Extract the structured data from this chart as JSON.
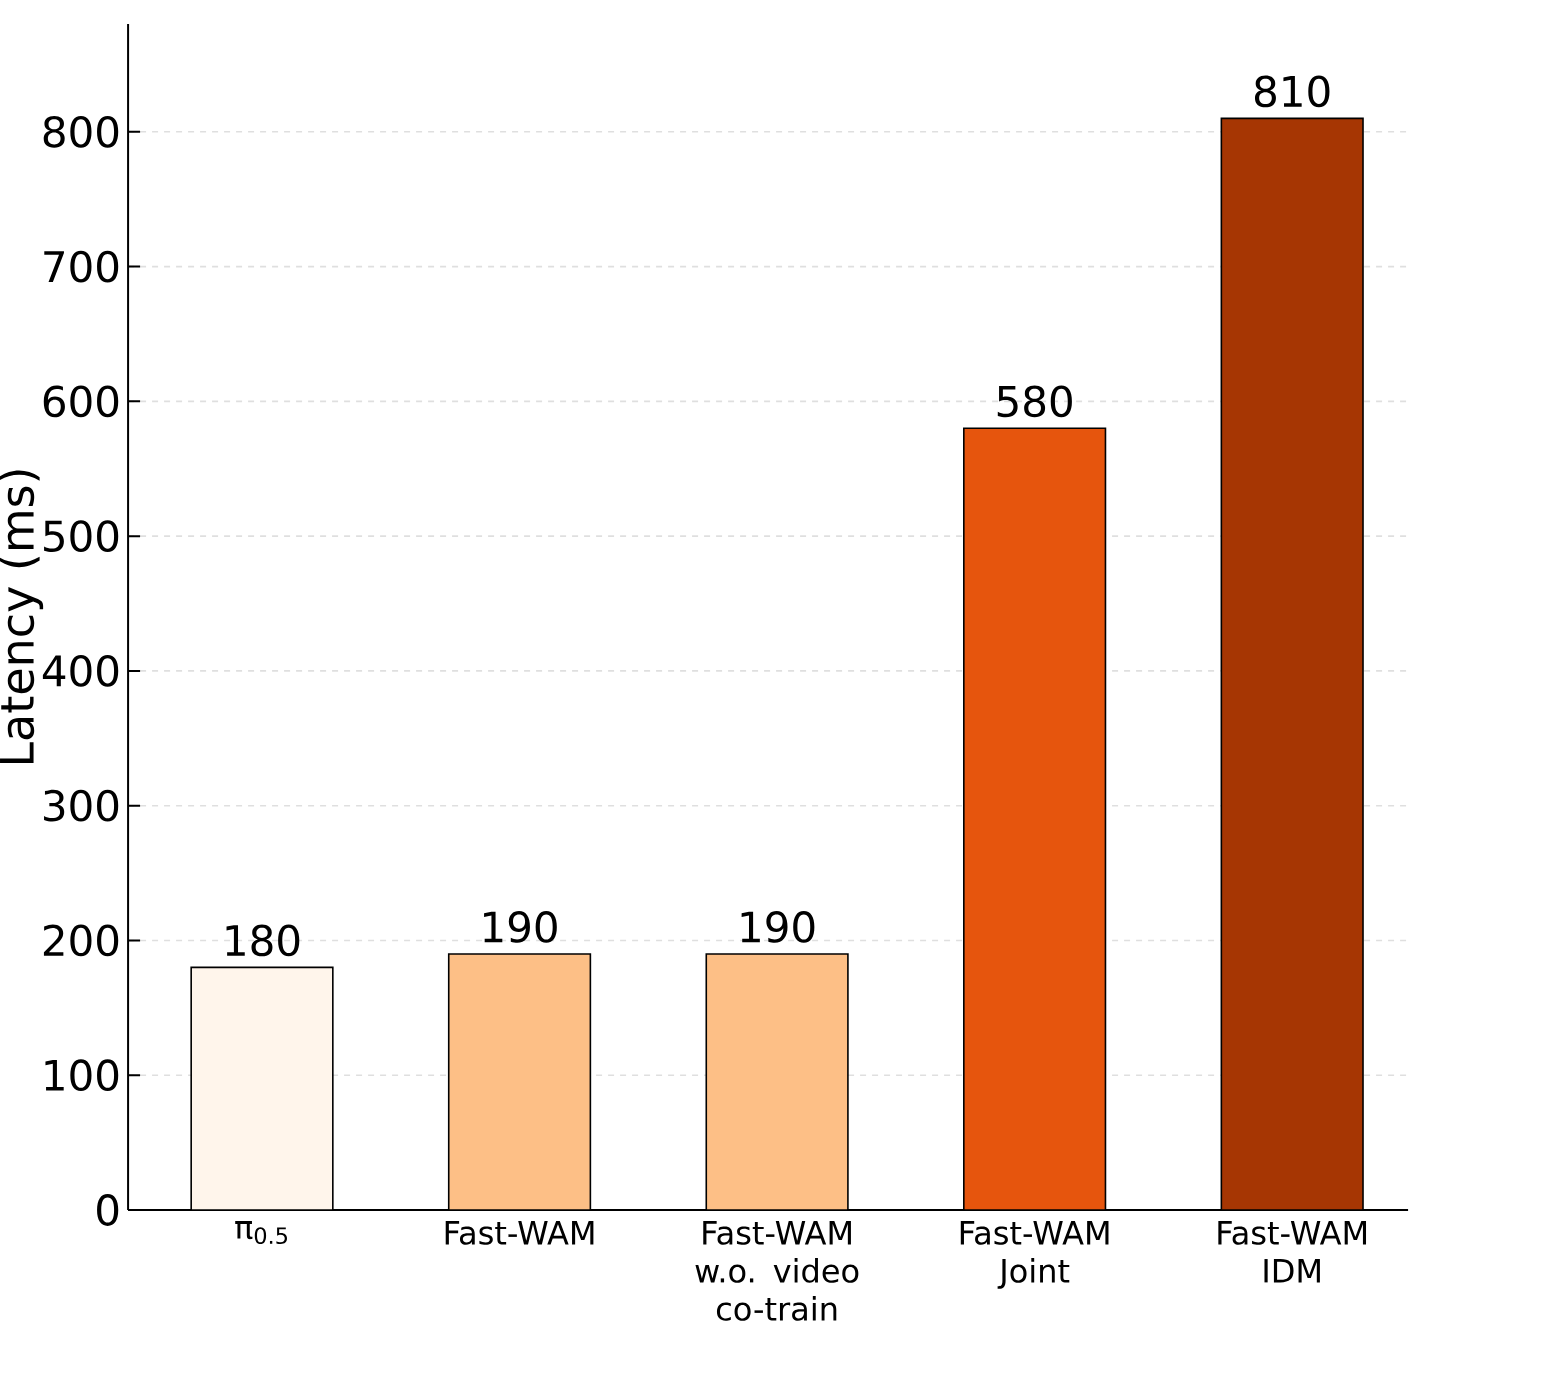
{
  "chart_data": {
    "type": "bar",
    "ylabel": "Latency (ms)",
    "categories": [
      "π$_{0.5}$",
      "Fast-WAM",
      "Fast-WAM w.o. video co-train",
      "Fast-WAM Joint",
      "Fast-WAM IDM"
    ],
    "values": [
      180,
      190,
      190,
      580,
      810
    ],
    "colors": [
      "#fff5eb",
      "#fdbf86",
      "#fdbf86",
      "#e6550d",
      "#a63603"
    ],
    "ylim": [
      0,
      880
    ],
    "yticks": [
      0,
      100,
      200,
      300,
      400,
      500,
      600,
      700,
      800
    ],
    "grid": "y",
    "data_labels": true
  }
}
